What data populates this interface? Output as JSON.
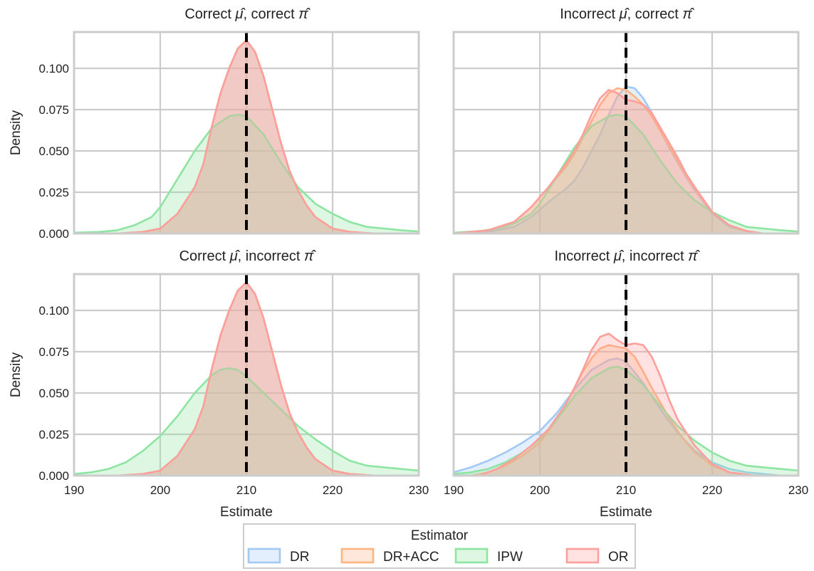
{
  "chart_data": [
    {
      "type": "area",
      "panel": "Correct μ̂, correct π̂",
      "title_parts": [
        "Correct ",
        "μ̂",
        ", correct ",
        "π̂"
      ],
      "xlabel": "",
      "ylabel": "Density",
      "xlim": [
        190,
        230
      ],
      "ylim": [
        0,
        0.122
      ],
      "xticks": [
        190,
        200,
        210,
        220,
        230
      ],
      "yticks": [
        "0.000",
        "0.025",
        "0.050",
        "0.075",
        "0.100"
      ],
      "show_xticklabels": false,
      "show_yticklabels": true,
      "grid": true,
      "reference_line": 210,
      "series": [
        {
          "name": "DR",
          "x": [
            195,
            198,
            200,
            202,
            203,
            204,
            205,
            206,
            207,
            208,
            209,
            210,
            211,
            212,
            213,
            214,
            215,
            216,
            217,
            218,
            220,
            222,
            225
          ],
          "values": [
            0,
            0.001,
            0.003,
            0.012,
            0.02,
            0.028,
            0.042,
            0.065,
            0.085,
            0.1,
            0.112,
            0.117,
            0.11,
            0.095,
            0.075,
            0.055,
            0.038,
            0.026,
            0.017,
            0.01,
            0.003,
            0.001,
            0
          ]
        },
        {
          "name": "DR+ACC",
          "x": [
            195,
            198,
            200,
            202,
            203,
            204,
            205,
            206,
            207,
            208,
            209,
            210,
            211,
            212,
            213,
            214,
            215,
            216,
            217,
            218,
            220,
            222,
            225
          ],
          "values": [
            0,
            0.001,
            0.003,
            0.012,
            0.02,
            0.028,
            0.042,
            0.065,
            0.085,
            0.1,
            0.112,
            0.117,
            0.11,
            0.095,
            0.075,
            0.055,
            0.038,
            0.026,
            0.017,
            0.01,
            0.003,
            0.001,
            0
          ]
        },
        {
          "name": "IPW",
          "x": [
            190,
            193,
            195,
            197,
            199,
            200,
            202,
            204,
            206,
            208,
            209,
            210,
            212,
            214,
            216,
            218,
            220,
            222,
            224,
            226,
            228,
            230
          ],
          "values": [
            0.0005,
            0.001,
            0.002,
            0.005,
            0.01,
            0.016,
            0.033,
            0.05,
            0.064,
            0.071,
            0.072,
            0.071,
            0.06,
            0.043,
            0.028,
            0.018,
            0.012,
            0.007,
            0.004,
            0.003,
            0.002,
            0.0012
          ]
        },
        {
          "name": "OR",
          "x": [
            195,
            198,
            200,
            202,
            203,
            204,
            205,
            206,
            207,
            208,
            209,
            210,
            211,
            212,
            213,
            214,
            215,
            216,
            217,
            218,
            220,
            222,
            225
          ],
          "values": [
            0,
            0.001,
            0.003,
            0.012,
            0.02,
            0.028,
            0.042,
            0.065,
            0.085,
            0.1,
            0.112,
            0.117,
            0.11,
            0.095,
            0.075,
            0.055,
            0.038,
            0.026,
            0.017,
            0.01,
            0.003,
            0.001,
            0
          ]
        }
      ]
    },
    {
      "type": "area",
      "panel": "Incorrect μ̂, correct π̂",
      "title_parts": [
        "Incorrect ",
        "μ̂",
        ", correct ",
        "π̂"
      ],
      "xlabel": "",
      "ylabel": "",
      "xlim": [
        190,
        230
      ],
      "ylim": [
        0,
        0.122
      ],
      "xticks": [
        190,
        200,
        210,
        220,
        230
      ],
      "yticks": [
        "0.000",
        "0.025",
        "0.050",
        "0.075",
        "0.100"
      ],
      "show_xticklabels": false,
      "show_yticklabels": false,
      "grid": true,
      "reference_line": 210,
      "series": [
        {
          "name": "DR",
          "x": [
            190,
            194,
            197,
            199,
            201,
            203,
            204,
            205,
            206,
            207,
            208,
            209,
            210,
            211,
            212,
            213,
            214,
            215,
            216,
            217,
            218,
            220,
            222,
            224,
            226
          ],
          "values": [
            0,
            0.001,
            0.004,
            0.01,
            0.019,
            0.027,
            0.032,
            0.04,
            0.05,
            0.06,
            0.072,
            0.083,
            0.089,
            0.088,
            0.082,
            0.073,
            0.062,
            0.052,
            0.043,
            0.034,
            0.026,
            0.012,
            0.004,
            0.0015,
            0
          ]
        },
        {
          "name": "DR+ACC",
          "x": [
            190,
            194,
            197,
            199,
            201,
            203,
            204,
            205,
            206,
            207,
            208,
            209,
            210,
            211,
            212,
            213,
            214,
            215,
            216,
            217,
            218,
            220,
            222,
            224,
            226
          ],
          "values": [
            0,
            0.002,
            0.007,
            0.016,
            0.028,
            0.04,
            0.048,
            0.058,
            0.068,
            0.078,
            0.085,
            0.088,
            0.087,
            0.083,
            0.078,
            0.071,
            0.062,
            0.053,
            0.044,
            0.035,
            0.027,
            0.013,
            0.005,
            0.0015,
            0
          ]
        },
        {
          "name": "IPW",
          "x": [
            190,
            193,
            195,
            197,
            199,
            200,
            202,
            204,
            206,
            208,
            209,
            210,
            212,
            214,
            216,
            218,
            220,
            222,
            224,
            226,
            228,
            230
          ],
          "values": [
            0.0005,
            0.0015,
            0.003,
            0.006,
            0.012,
            0.018,
            0.035,
            0.052,
            0.065,
            0.071,
            0.072,
            0.071,
            0.06,
            0.044,
            0.03,
            0.02,
            0.013,
            0.008,
            0.004,
            0.003,
            0.002,
            0.0012
          ]
        },
        {
          "name": "OR",
          "x": [
            190,
            194,
            197,
            199,
            201,
            203,
            204,
            205,
            206,
            207,
            208,
            209,
            210,
            211,
            212,
            213,
            214,
            215,
            216,
            217,
            218,
            220,
            222,
            224,
            226
          ],
          "values": [
            0,
            0.002,
            0.007,
            0.016,
            0.028,
            0.042,
            0.05,
            0.06,
            0.072,
            0.082,
            0.087,
            0.085,
            0.081,
            0.08,
            0.078,
            0.073,
            0.064,
            0.055,
            0.046,
            0.036,
            0.028,
            0.013,
            0.005,
            0.0015,
            0
          ]
        }
      ]
    },
    {
      "type": "area",
      "panel": "Correct μ̂, incorrect π̂",
      "title_parts": [
        "Correct ",
        "μ̂",
        ", incorrect ",
        "π̂"
      ],
      "xlabel": "Estimate",
      "ylabel": "Density",
      "xlim": [
        190,
        230
      ],
      "ylim": [
        0,
        0.122
      ],
      "xticks": [
        190,
        200,
        210,
        220,
        230
      ],
      "yticks": [
        "0.000",
        "0.025",
        "0.050",
        "0.075",
        "0.100"
      ],
      "show_xticklabels": true,
      "show_yticklabels": true,
      "grid": true,
      "reference_line": 210,
      "series": [
        {
          "name": "DR",
          "x": [
            195,
            198,
            200,
            202,
            203,
            204,
            205,
            206,
            207,
            208,
            209,
            210,
            211,
            212,
            213,
            214,
            215,
            216,
            217,
            218,
            220,
            222,
            225
          ],
          "values": [
            0,
            0.001,
            0.003,
            0.012,
            0.02,
            0.028,
            0.042,
            0.065,
            0.085,
            0.1,
            0.112,
            0.117,
            0.11,
            0.095,
            0.075,
            0.055,
            0.038,
            0.026,
            0.017,
            0.01,
            0.003,
            0.001,
            0
          ]
        },
        {
          "name": "DR+ACC",
          "x": [
            195,
            198,
            200,
            202,
            203,
            204,
            205,
            206,
            207,
            208,
            209,
            210,
            211,
            212,
            213,
            214,
            215,
            216,
            217,
            218,
            220,
            222,
            225
          ],
          "values": [
            0,
            0.001,
            0.003,
            0.012,
            0.02,
            0.028,
            0.042,
            0.065,
            0.085,
            0.1,
            0.112,
            0.117,
            0.11,
            0.095,
            0.075,
            0.055,
            0.038,
            0.026,
            0.017,
            0.01,
            0.003,
            0.001,
            0
          ]
        },
        {
          "name": "IPW",
          "x": [
            190,
            192,
            194,
            196,
            198,
            200,
            202,
            204,
            206,
            207,
            208,
            209,
            210,
            212,
            214,
            216,
            218,
            220,
            222,
            224,
            226,
            228,
            230
          ],
          "values": [
            0.001,
            0.002,
            0.004,
            0.008,
            0.015,
            0.024,
            0.036,
            0.05,
            0.061,
            0.064,
            0.065,
            0.064,
            0.06,
            0.05,
            0.04,
            0.03,
            0.022,
            0.015,
            0.009,
            0.006,
            0.005,
            0.004,
            0.003
          ]
        },
        {
          "name": "OR",
          "x": [
            195,
            198,
            200,
            202,
            203,
            204,
            205,
            206,
            207,
            208,
            209,
            210,
            211,
            212,
            213,
            214,
            215,
            216,
            217,
            218,
            220,
            222,
            225
          ],
          "values": [
            0,
            0.001,
            0.003,
            0.012,
            0.02,
            0.028,
            0.042,
            0.065,
            0.085,
            0.1,
            0.112,
            0.117,
            0.11,
            0.095,
            0.075,
            0.055,
            0.038,
            0.026,
            0.017,
            0.01,
            0.003,
            0.001,
            0
          ]
        }
      ]
    },
    {
      "type": "area",
      "panel": "Incorrect μ̂, incorrect π̂",
      "title_parts": [
        "Incorrect ",
        "μ̂",
        ", incorrect ",
        "π̂"
      ],
      "xlabel": "Estimate",
      "ylabel": "",
      "xlim": [
        190,
        230
      ],
      "ylim": [
        0,
        0.122
      ],
      "xticks": [
        190,
        200,
        210,
        220,
        230
      ],
      "yticks": [
        "0.000",
        "0.025",
        "0.050",
        "0.075",
        "0.100"
      ],
      "show_xticklabels": true,
      "show_yticklabels": false,
      "grid": true,
      "reference_line": 210,
      "series": [
        {
          "name": "DR",
          "x": [
            190,
            192,
            194,
            196,
            198,
            200,
            202,
            204,
            206,
            208,
            209,
            210,
            212,
            214,
            216,
            218,
            220,
            222,
            224,
            226,
            228
          ],
          "values": [
            0.002,
            0.005,
            0.009,
            0.014,
            0.02,
            0.027,
            0.038,
            0.052,
            0.064,
            0.07,
            0.071,
            0.069,
            0.056,
            0.04,
            0.026,
            0.015,
            0.008,
            0.004,
            0.002,
            0.001,
            0
          ]
        },
        {
          "name": "DR+ACC",
          "x": [
            192,
            194,
            196,
            198,
            200,
            202,
            203,
            204,
            205,
            206,
            207,
            208,
            209,
            210,
            211,
            212,
            213,
            214,
            215,
            216,
            217,
            218,
            220,
            222,
            225
          ],
          "values": [
            0,
            0.002,
            0.006,
            0.012,
            0.02,
            0.034,
            0.043,
            0.053,
            0.063,
            0.071,
            0.077,
            0.079,
            0.078,
            0.077,
            0.072,
            0.063,
            0.053,
            0.044,
            0.035,
            0.027,
            0.02,
            0.014,
            0.006,
            0.002,
            0
          ]
        },
        {
          "name": "IPW",
          "x": [
            190,
            192,
            194,
            196,
            198,
            200,
            202,
            204,
            206,
            208,
            209,
            210,
            212,
            214,
            216,
            218,
            220,
            222,
            224,
            226,
            228,
            230
          ],
          "values": [
            0.001,
            0.002,
            0.004,
            0.008,
            0.014,
            0.022,
            0.034,
            0.048,
            0.059,
            0.065,
            0.066,
            0.064,
            0.055,
            0.042,
            0.03,
            0.021,
            0.014,
            0.009,
            0.006,
            0.005,
            0.004,
            0.003
          ]
        },
        {
          "name": "OR",
          "x": [
            193,
            195,
            197,
            199,
            201,
            203,
            204,
            205,
            206,
            207,
            208,
            209,
            210,
            211,
            212,
            213,
            214,
            215,
            216,
            217,
            218,
            220,
            222,
            225
          ],
          "values": [
            0,
            0.004,
            0.01,
            0.018,
            0.028,
            0.043,
            0.053,
            0.064,
            0.076,
            0.084,
            0.086,
            0.082,
            0.079,
            0.08,
            0.079,
            0.072,
            0.06,
            0.046,
            0.034,
            0.026,
            0.018,
            0.007,
            0.002,
            0
          ]
        }
      ]
    }
  ],
  "legend": {
    "title": "Estimator",
    "placement": "bottom-center",
    "items": [
      {
        "label": "DR",
        "color": "#a1c9f4"
      },
      {
        "label": "DR+ACC",
        "color": "#ffb482"
      },
      {
        "label": "IPW",
        "color": "#8de5a1"
      },
      {
        "label": "OR",
        "color": "#ff9f9b"
      }
    ]
  },
  "series_colors": {
    "DR": "#a1c9f4",
    "DR+ACC": "#ffb482",
    "IPW": "#8de5a1",
    "OR": "#ff9f9b"
  },
  "reference_line_color": "#000000"
}
